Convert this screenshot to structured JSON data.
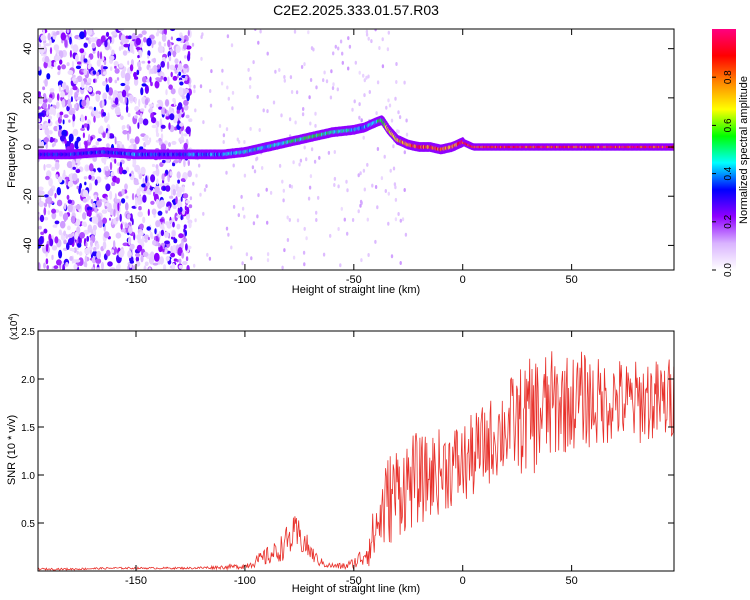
{
  "title": "C2E2.2025.333.01.57.R03",
  "chart_data": [
    {
      "type": "heatmap",
      "xlabel": "Height of straight line (km)",
      "ylabel": "Frequency (Hz)",
      "xlim": [
        -195,
        97
      ],
      "ylim": [
        -50,
        48
      ],
      "xticks": [
        -150,
        -100,
        -50,
        0,
        50
      ],
      "yticks": [
        -40,
        -20,
        0,
        20,
        40
      ],
      "colorbar": {
        "label": "Normalized spectral amplitude",
        "range": [
          0.0,
          1.0
        ],
        "ticks": [
          0.0,
          0.2,
          0.4,
          0.6,
          0.8
        ],
        "colors": [
          "#ffffff",
          "#d9b3ff",
          "#8f00ff",
          "#0000ff",
          "#00ffff",
          "#00ff00",
          "#ffff00",
          "#ff8800",
          "#ff0000",
          "#ff0080"
        ]
      },
      "ridge": {
        "x": [
          -195,
          -180,
          -165,
          -150,
          -140,
          -130,
          -120,
          -110,
          -100,
          -90,
          -80,
          -70,
          -60,
          -50,
          -45,
          -40,
          -37,
          -34,
          -30,
          -25,
          -20,
          -15,
          -10,
          -5,
          0,
          5,
          10,
          20,
          40,
          60,
          80,
          97
        ],
        "y": [
          -3,
          -3,
          -2,
          -3,
          -3,
          -3,
          -3,
          -3,
          -2,
          0,
          2,
          4,
          6,
          7,
          8,
          10,
          11,
          7,
          3,
          1,
          0,
          0,
          -1,
          0,
          2,
          0,
          0,
          0,
          0,
          0,
          0,
          0
        ],
        "amplitude": [
          0.35,
          0.4,
          0.4,
          0.45,
          0.4,
          0.4,
          0.45,
          0.45,
          0.5,
          0.5,
          0.55,
          0.6,
          0.55,
          0.5,
          0.45,
          0.5,
          0.6,
          0.75,
          0.8,
          0.85,
          0.95,
          0.95,
          0.9,
          0.9,
          0.95,
          1.0,
          1.0,
          1.0,
          1.0,
          1.0,
          1.0,
          1.0
        ]
      },
      "noise_region_x": [
        -195,
        -125
      ]
    },
    {
      "type": "line",
      "xlabel": "Height of straight line (km)",
      "ylabel": "SNR (10 * v/v)",
      "multiplier": "(x10",
      "multiplier_exp": "4",
      "multiplier_close": ")",
      "xlim": [
        -195,
        97
      ],
      "ylim": [
        0,
        2.5
      ],
      "xticks": [
        -150,
        -100,
        -50,
        0,
        50
      ],
      "yticks": [
        0.5,
        1.0,
        1.5,
        2.0,
        2.5
      ],
      "series": [
        {
          "name": "SNR",
          "color": "#e8302a",
          "x": [
            -195,
            -180,
            -160,
            -140,
            -125,
            -110,
            -100,
            -95,
            -90,
            -85,
            -80,
            -77,
            -74,
            -70,
            -66,
            -62,
            -58,
            -54,
            -50,
            -46,
            -42,
            -38,
            -34,
            -30,
            -26,
            -22,
            -18,
            -14,
            -10,
            -5,
            0,
            5,
            10,
            15,
            20,
            25,
            30,
            35,
            40,
            45,
            50,
            55,
            60,
            65,
            70,
            75,
            80,
            85,
            90,
            97
          ],
          "values": [
            0.02,
            0.02,
            0.03,
            0.03,
            0.03,
            0.04,
            0.05,
            0.1,
            0.15,
            0.2,
            0.32,
            0.38,
            0.34,
            0.2,
            0.1,
            0.06,
            0.05,
            0.05,
            0.08,
            0.15,
            0.3,
            0.55,
            0.75,
            0.85,
            0.9,
            0.95,
            0.95,
            1.0,
            1.05,
            1.1,
            1.1,
            1.2,
            1.3,
            1.4,
            1.5,
            1.55,
            1.6,
            1.65,
            1.7,
            1.75,
            1.75,
            1.8,
            1.75,
            1.75,
            1.8,
            1.75,
            1.75,
            1.8,
            1.75,
            1.8
          ],
          "spread": [
            0.01,
            0.01,
            0.01,
            0.01,
            0.01,
            0.02,
            0.03,
            0.06,
            0.1,
            0.12,
            0.18,
            0.2,
            0.18,
            0.1,
            0.05,
            0.03,
            0.03,
            0.04,
            0.06,
            0.12,
            0.25,
            0.4,
            0.5,
            0.5,
            0.5,
            0.5,
            0.45,
            0.45,
            0.45,
            0.45,
            0.45,
            0.45,
            0.45,
            0.45,
            0.5,
            0.55,
            0.6,
            0.65,
            0.6,
            0.55,
            0.5,
            0.5,
            0.5,
            0.45,
            0.45,
            0.45,
            0.45,
            0.45,
            0.45,
            0.45
          ]
        }
      ]
    }
  ]
}
